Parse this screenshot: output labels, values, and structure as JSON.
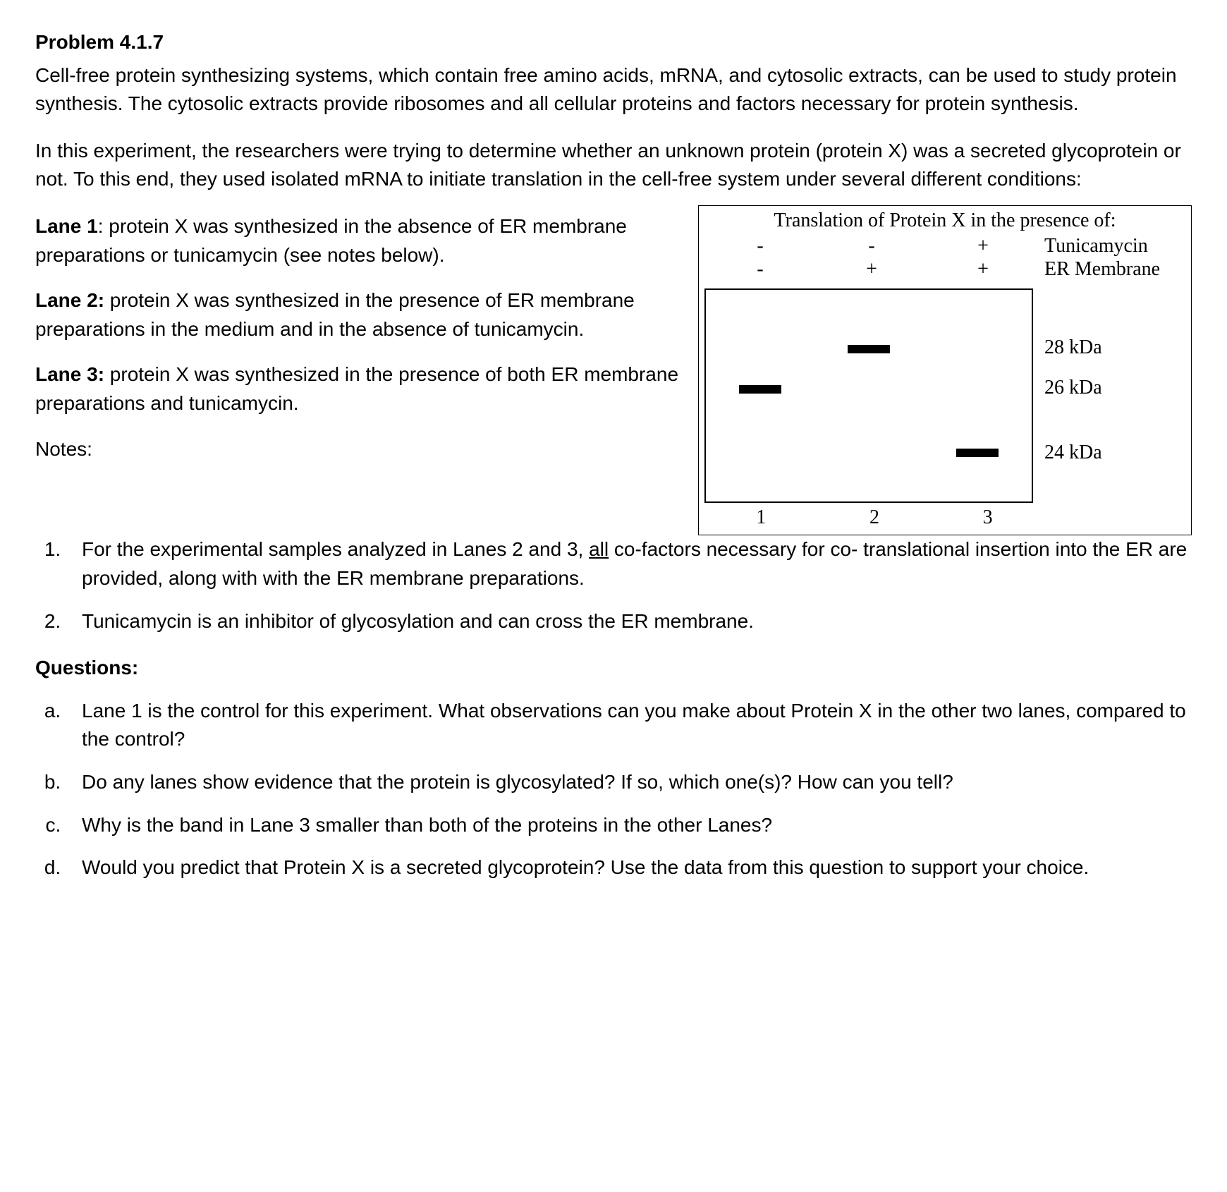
{
  "title": "Problem 4.1.7",
  "para1": "Cell-free protein synthesizing systems, which contain free amino acids, mRNA, and cytosolic extracts, can be used to study protein synthesis.  The cytosolic extracts provide ribosomes and all cellular proteins and factors necessary for protein synthesis.",
  "para2": "In this experiment, the researchers were trying to determine whether an unknown protein (protein X) was a secreted glycoprotein or not. To this end, they used isolated mRNA to initiate translation in the cell-free system under several different conditions:",
  "lanes": {
    "lane1": {
      "label": "Lane 1",
      "text": ": protein X was synthesized in the absence of ER membrane preparations or tunicamycin (see notes below)."
    },
    "lane2": {
      "label": "Lane 2:",
      "text": " protein X was synthesized in the presence of ER membrane preparations in the medium and in the absence of tunicamycin."
    },
    "lane3": {
      "label": "Lane 3:",
      "text": " protein X was synthesized in the presence of both ER membrane preparations and tunicamycin."
    }
  },
  "figure": {
    "header": "Translation of Protein X in the presence of:",
    "cond_tunicamycin": {
      "c1": "-",
      "c2": "-",
      "c3": "+",
      "label": "Tunicamycin"
    },
    "cond_er": {
      "c1": "-",
      "c2": "+",
      "c3": "+",
      "label": "ER Membrane"
    },
    "bands": {
      "lane1_top_pct": 45,
      "lane2_top_pct": 26,
      "lane3_top_pct": 75
    },
    "kda": {
      "k28": {
        "label": "28 kDa",
        "top_pct": 22
      },
      "k26": {
        "label": "26 kDa",
        "top_pct": 41
      },
      "k24": {
        "label": "24 kDa",
        "top_pct": 71
      }
    },
    "lane_numbers": {
      "n1": "1",
      "n2": "2",
      "n3": "3"
    },
    "colors": {
      "border": "#000000",
      "band": "#000000",
      "background": "#ffffff"
    }
  },
  "notes_heading": "Notes:",
  "notes": {
    "n1_pre": "For the experimental samples analyzed in Lanes 2 and 3, ",
    "n1_underline": "all",
    "n1_post": " co-factors necessary for co- translational insertion into the ER are provided, along with with the ER membrane preparations.",
    "n2": "Tunicamycin is an inhibitor of glycosylation and can cross the ER membrane."
  },
  "questions_heading": "Questions:",
  "questions": {
    "a": "Lane 1 is the control for this experiment. What observations can you make about Protein X in the other two lanes, compared to the control?",
    "b": "Do any lanes show evidence that the protein is glycosylated? If so, which one(s)? How can you tell?",
    "c": "Why is the band in Lane 3 smaller than both of the proteins in the other Lanes?",
    "d": "Would you predict that Protein X is a secreted glycoprotein? Use the data from this question to support your choice."
  }
}
